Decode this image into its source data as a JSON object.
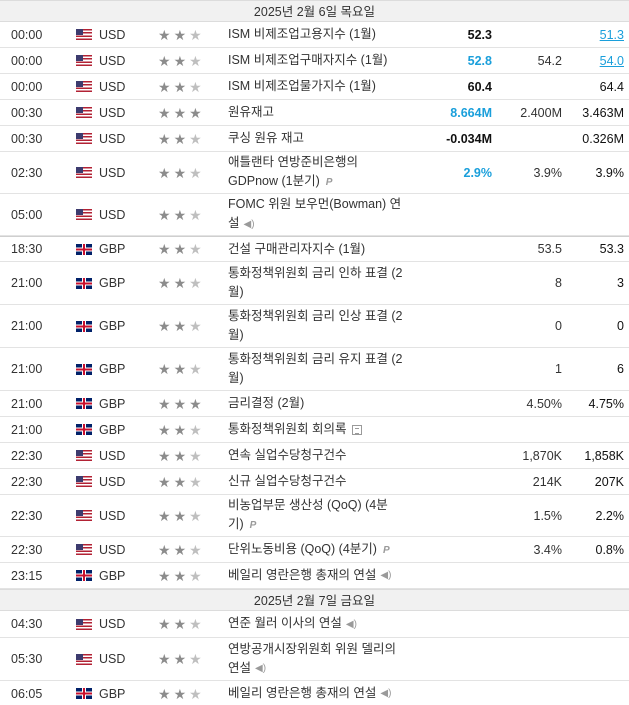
{
  "days": [
    {
      "header": "2025년 2월 6일 목요일",
      "events": [
        {
          "time": "00:00",
          "flag": "flag-us",
          "currency": "USD",
          "stars": 2,
          "name": "ISM 비제조업고용지수 (1월)",
          "icon": "",
          "actual": "52.3",
          "actual_style": "",
          "forecast": "",
          "previous": "51.3",
          "previous_style": "link",
          "h": 26
        },
        {
          "time": "00:00",
          "flag": "flag-us",
          "currency": "USD",
          "stars": 2,
          "name": "ISM 비제조업구매자지수 (1월)",
          "icon": "",
          "actual": "52.8",
          "actual_style": "blue",
          "forecast": "54.2",
          "previous": "54.0",
          "previous_style": "link",
          "h": 26
        },
        {
          "time": "00:00",
          "flag": "flag-us",
          "currency": "USD",
          "stars": 2,
          "name": "ISM 비제조업물가지수 (1월)",
          "icon": "",
          "actual": "60.4",
          "actual_style": "",
          "forecast": "",
          "previous": "64.4",
          "previous_style": "",
          "h": 26
        },
        {
          "time": "00:30",
          "flag": "flag-us",
          "currency": "USD",
          "stars": 3,
          "name": "원유재고",
          "icon": "",
          "actual": "8.664M",
          "actual_style": "blue",
          "forecast": "2.400M",
          "previous": "3.463M",
          "previous_style": "",
          "h": 26
        },
        {
          "time": "00:30",
          "flag": "flag-us",
          "currency": "USD",
          "stars": 2,
          "name": "쿠싱 원유 재고",
          "icon": "",
          "actual": "-0.034M",
          "actual_style": "",
          "forecast": "",
          "previous": "0.326M",
          "previous_style": "",
          "h": 26
        },
        {
          "time": "02:30",
          "flag": "flag-us",
          "currency": "USD",
          "stars": 2,
          "name": "애틀랜타 연방준비은행의 GDPnow (1분기)",
          "icon": "p",
          "actual": "2.9%",
          "actual_style": "blue",
          "forecast": "3.9%",
          "previous": "3.9%",
          "previous_style": "",
          "h": 42
        },
        {
          "time": "05:00",
          "flag": "flag-us",
          "currency": "USD",
          "stars": 2,
          "name": "FOMC 위원 보우먼(Bowman) 연설",
          "icon": "speaker",
          "actual": "",
          "actual_style": "",
          "forecast": "",
          "previous": "",
          "previous_style": "",
          "h": 42,
          "sep_after": true
        },
        {
          "time": "18:30",
          "flag": "flag-gb",
          "currency": "GBP",
          "stars": 2,
          "name": "건설 구매관리자지수 (1월)",
          "icon": "",
          "actual": "",
          "actual_style": "",
          "forecast": "53.5",
          "previous": "53.3",
          "previous_style": "",
          "h": 26
        },
        {
          "time": "21:00",
          "flag": "flag-gb",
          "currency": "GBP",
          "stars": 2,
          "name": "통화정책위원회 금리 인하 표결 (2월)",
          "icon": "",
          "actual": "",
          "actual_style": "",
          "forecast": "8",
          "previous": "3",
          "previous_style": "",
          "h": 43
        },
        {
          "time": "21:00",
          "flag": "flag-gb",
          "currency": "GBP",
          "stars": 2,
          "name": "통화정책위원회 금리 인상 표결 (2월)",
          "icon": "",
          "actual": "",
          "actual_style": "",
          "forecast": "0",
          "previous": "0",
          "previous_style": "",
          "h": 43
        },
        {
          "time": "21:00",
          "flag": "flag-gb",
          "currency": "GBP",
          "stars": 2,
          "name": "통화정책위원회 금리 유지 표결 (2월)",
          "icon": "",
          "actual": "",
          "actual_style": "",
          "forecast": "1",
          "previous": "6",
          "previous_style": "",
          "h": 43
        },
        {
          "time": "21:00",
          "flag": "flag-gb",
          "currency": "GBP",
          "stars": 3,
          "name": "금리결정 (2월)",
          "icon": "",
          "actual": "",
          "actual_style": "",
          "forecast": "4.50%",
          "previous": "4.75%",
          "previous_style": "",
          "h": 26
        },
        {
          "time": "21:00",
          "flag": "flag-gb",
          "currency": "GBP",
          "stars": 2,
          "name": "통화정책위원회 회의록",
          "icon": "doc",
          "actual": "",
          "actual_style": "",
          "forecast": "",
          "previous": "",
          "previous_style": "",
          "h": 26
        },
        {
          "time": "22:30",
          "flag": "flag-us",
          "currency": "USD",
          "stars": 2,
          "name": "연속 실업수당청구건수",
          "icon": "",
          "actual": "",
          "actual_style": "",
          "forecast": "1,870K",
          "previous": "1,858K",
          "previous_style": "",
          "h": 26
        },
        {
          "time": "22:30",
          "flag": "flag-us",
          "currency": "USD",
          "stars": 2,
          "name": "신규 실업수당청구건수",
          "icon": "",
          "actual": "",
          "actual_style": "",
          "forecast": "214K",
          "previous": "207K",
          "previous_style": "",
          "h": 26
        },
        {
          "time": "22:30",
          "flag": "flag-us",
          "currency": "USD",
          "stars": 2,
          "name": "비농업부문 생산성 (QoQ) (4분기)",
          "icon": "p",
          "actual": "",
          "actual_style": "",
          "forecast": "1.5%",
          "previous": "2.2%",
          "previous_style": "",
          "h": 42
        },
        {
          "time": "22:30",
          "flag": "flag-us",
          "currency": "USD",
          "stars": 2,
          "name": "단위노동비용 (QoQ) (4분기)",
          "icon": "p",
          "actual": "",
          "actual_style": "",
          "forecast": "3.4%",
          "previous": "0.8%",
          "previous_style": "",
          "h": 26
        },
        {
          "time": "23:15",
          "flag": "flag-gb",
          "currency": "GBP",
          "stars": 2,
          "name": "베일리 영란은행 총재의 연설",
          "icon": "speaker",
          "actual": "",
          "actual_style": "",
          "forecast": "",
          "previous": "",
          "previous_style": "",
          "h": 26
        }
      ]
    },
    {
      "header": "2025년 2월 7일 금요일",
      "events": [
        {
          "time": "04:30",
          "flag": "flag-us",
          "currency": "USD",
          "stars": 2,
          "name": "연준 월러 이사의 연설",
          "icon": "speaker",
          "actual": "",
          "actual_style": "",
          "forecast": "",
          "previous": "",
          "previous_style": "",
          "h": 27
        },
        {
          "time": "05:30",
          "flag": "flag-us",
          "currency": "USD",
          "stars": 2,
          "name": "연방공개시장위원회 위원 델리의 연설",
          "icon": "speaker",
          "actual": "",
          "actual_style": "",
          "forecast": "",
          "previous": "",
          "previous_style": "",
          "h": 43
        },
        {
          "time": "06:05",
          "flag": "flag-gb",
          "currency": "GBP",
          "stars": 2,
          "name": "베일리 영란은행 총재의 연설",
          "icon": "speaker",
          "actual": "",
          "actual_style": "",
          "forecast": "",
          "previous": "",
          "previous_style": "",
          "h": 26
        }
      ]
    }
  ]
}
